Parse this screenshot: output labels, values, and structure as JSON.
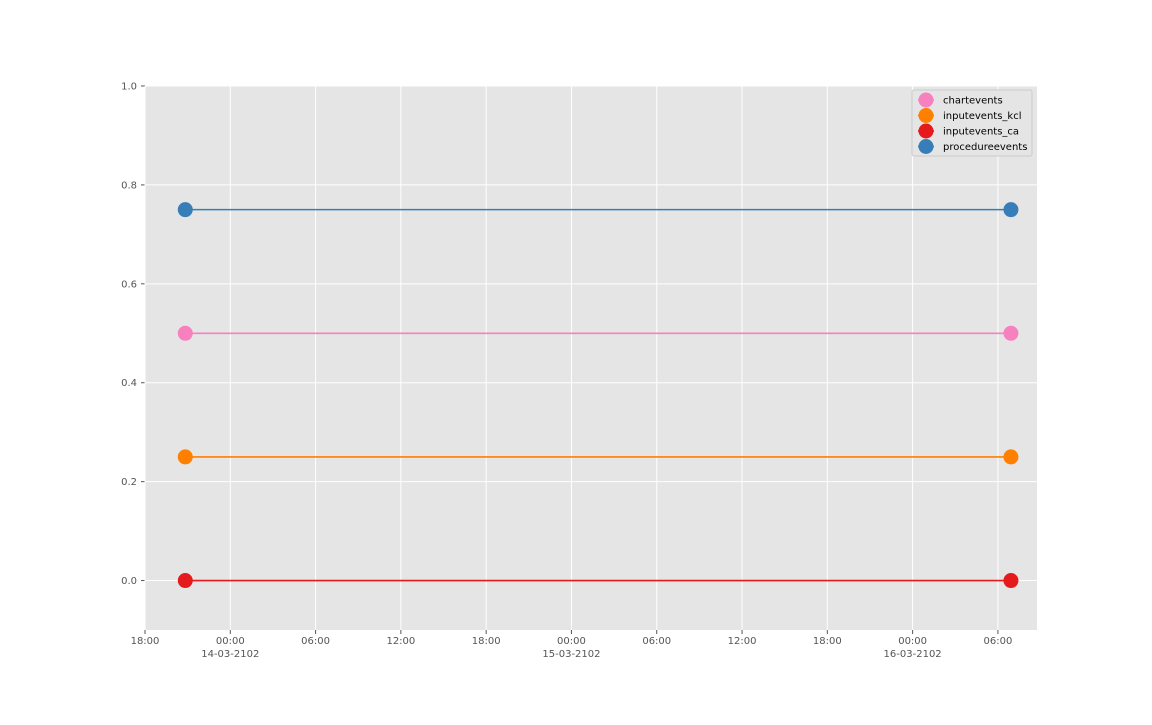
{
  "chart_data": {
    "type": "line",
    "title": "",
    "xlabel": "",
    "ylabel": "",
    "grid": true,
    "legend_placement": "top-right",
    "background_color": "#e5e5e5",
    "grid_color": "#ffffff",
    "xlim": [
      "2102-03-13 18:00",
      "2102-03-16 08:45"
    ],
    "ylim": [
      -0.1,
      1.0
    ],
    "y_ticks": [
      0.0,
      0.2,
      0.4,
      0.6,
      0.8,
      1.0
    ],
    "y_tick_labels": [
      "0.0",
      "0.2",
      "0.4",
      "0.6",
      "0.8",
      "1.0"
    ],
    "x_ticks": [
      {
        "t": "2102-03-13 18:00",
        "label": "18:00",
        "sublabel": ""
      },
      {
        "t": "2102-03-14 00:00",
        "label": "00:00",
        "sublabel": "14-03-2102"
      },
      {
        "t": "2102-03-14 06:00",
        "label": "06:00",
        "sublabel": ""
      },
      {
        "t": "2102-03-14 12:00",
        "label": "12:00",
        "sublabel": ""
      },
      {
        "t": "2102-03-14 18:00",
        "label": "18:00",
        "sublabel": ""
      },
      {
        "t": "2102-03-15 00:00",
        "label": "00:00",
        "sublabel": "15-03-2102"
      },
      {
        "t": "2102-03-15 06:00",
        "label": "06:00",
        "sublabel": ""
      },
      {
        "t": "2102-03-15 12:00",
        "label": "12:00",
        "sublabel": ""
      },
      {
        "t": "2102-03-15 18:00",
        "label": "18:00",
        "sublabel": ""
      },
      {
        "t": "2102-03-16 00:00",
        "label": "00:00",
        "sublabel": "16-03-2102"
      },
      {
        "t": "2102-03-16 06:00",
        "label": "06:00",
        "sublabel": ""
      }
    ],
    "series": [
      {
        "name": "chartevents",
        "color": "#f781bf",
        "points": [
          {
            "x": "2102-03-13 20:50",
            "y": 0.5
          },
          {
            "x": "2102-03-16 06:55",
            "y": 0.5
          }
        ]
      },
      {
        "name": "inputevents_kcl",
        "color": "#ff7f00",
        "points": [
          {
            "x": "2102-03-13 20:50",
            "y": 0.25
          },
          {
            "x": "2102-03-16 06:55",
            "y": 0.25
          }
        ]
      },
      {
        "name": "inputevents_ca",
        "color": "#e41a1c",
        "points": [
          {
            "x": "2102-03-13 20:50",
            "y": 0.0
          },
          {
            "x": "2102-03-16 06:55",
            "y": 0.0
          }
        ]
      },
      {
        "name": "procedureevents",
        "color": "#377eb8",
        "points": [
          {
            "x": "2102-03-13 20:50",
            "y": 0.75
          },
          {
            "x": "2102-03-16 06:55",
            "y": 0.75
          }
        ]
      }
    ]
  }
}
